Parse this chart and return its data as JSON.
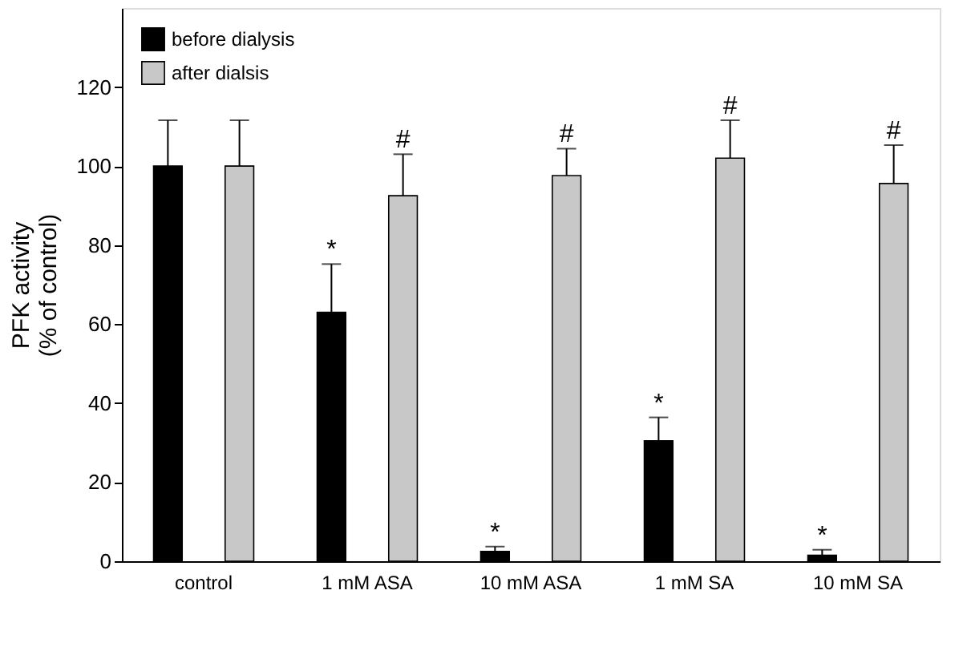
{
  "chart_data": {
    "type": "bar",
    "ylabel": "PFK activity\n(% of control)",
    "categories": [
      "control",
      "1 mM ASA",
      "10 mM ASA",
      "1 mM SA",
      "10 mM SA"
    ],
    "series": [
      {
        "name": "before dialysis",
        "color": "#000000",
        "values": [
          100,
          63,
          2.5,
          30.5,
          1.5
        ],
        "errors": [
          11.6,
          12.2,
          1.2,
          5.9,
          1.4
        ],
        "value_labels": [
          null,
          "*",
          "*",
          "*",
          "*"
        ]
      },
      {
        "name": "after dialsis",
        "color": "#c8c8c8",
        "values": [
          100,
          92.5,
          97.6,
          102,
          95.6
        ],
        "errors": [
          11.6,
          10.5,
          6.8,
          9.6,
          9.7
        ],
        "value_labels": [
          null,
          "#",
          "#",
          "#",
          "#"
        ]
      }
    ],
    "ylim": [
      0,
      140
    ],
    "yticks": [
      0,
      20,
      40,
      60,
      80,
      100,
      120
    ],
    "legend": "top left",
    "grid": false
  }
}
